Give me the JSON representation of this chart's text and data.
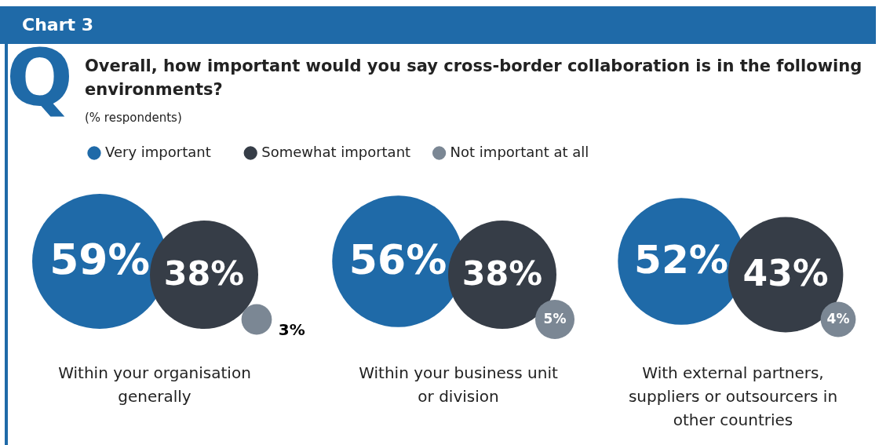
{
  "chart_data": {
    "type": "other",
    "title": "Chart 3",
    "subtitle": "Overall, how important would you say cross-border collaboration is in the following environments?",
    "annotations": [
      "Q",
      "(% respondents)"
    ],
    "legend": "top left",
    "categories": [
      "Within your organisation generally",
      "Within your business unit or division",
      "With external partners, suppliers or outsourcers in other countries"
    ],
    "series": [
      {
        "name": "Very important",
        "color": "#1f6aa8",
        "values": [
          59,
          56,
          52
        ],
        "value_labels": [
          "59%",
          "56%",
          "52%"
        ]
      },
      {
        "name": "Somewhat important",
        "color": "#363d47",
        "values": [
          38,
          38,
          43
        ],
        "value_labels": [
          "38%",
          "38%",
          "43%"
        ]
      },
      {
        "name": "Not important at all",
        "color": "#7b8794",
        "values": [
          3,
          5,
          4
        ],
        "value_labels": [
          "3%",
          "5%",
          "4%"
        ]
      }
    ]
  }
}
